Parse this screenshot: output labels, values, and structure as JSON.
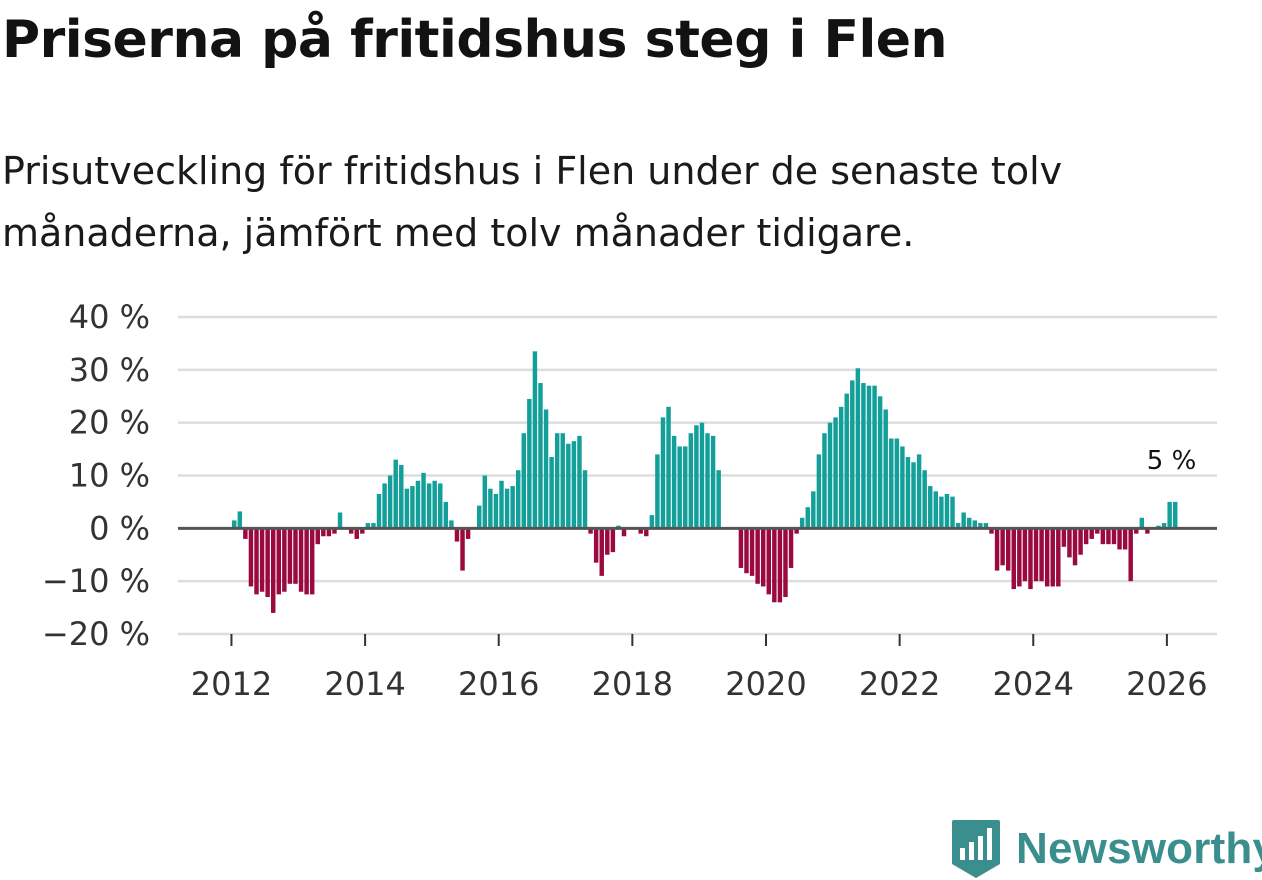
{
  "title": "Priserna på fritidshus steg i Flen",
  "subtitle": "Prisutveckling för fritidshus i Flen under de senaste tolv månaderna, jämfört med tolv månader tidigare.",
  "logo": {
    "text": "Newsworthy",
    "icon": "newsworthy-logo-icon"
  },
  "colors": {
    "positive": "#14a09a",
    "negative": "#9b0a3f",
    "grid": "#dddddd",
    "zero": "#555555",
    "brand": "#3a8f8e"
  },
  "chart_data": {
    "type": "bar",
    "title": "Priserna på fritidshus steg i Flen",
    "xlabel": "",
    "ylabel": "",
    "ylim": [
      -20,
      40
    ],
    "xlim": [
      2011.2,
      2026.75
    ],
    "y_ticks": [
      {
        "value": 40,
        "label": "40 %"
      },
      {
        "value": 30,
        "label": "30 %"
      },
      {
        "value": 20,
        "label": "20 %"
      },
      {
        "value": 10,
        "label": "10 %"
      },
      {
        "value": 0,
        "label": "0 %"
      },
      {
        "value": -10,
        "label": "−10 %"
      },
      {
        "value": -20,
        "label": "−20 %"
      }
    ],
    "x_ticks": [
      {
        "value": 2012,
        "label": "2012"
      },
      {
        "value": 2014,
        "label": "2014"
      },
      {
        "value": 2016,
        "label": "2016"
      },
      {
        "value": 2018,
        "label": "2018"
      },
      {
        "value": 2020,
        "label": "2020"
      },
      {
        "value": 2022,
        "label": "2022"
      },
      {
        "value": 2024,
        "label": "2024"
      },
      {
        "value": 2026,
        "label": "2026"
      }
    ],
    "series_start": "2012-01",
    "values": [
      1.5,
      3.2,
      -2,
      -11,
      -12.5,
      -12,
      -13,
      -16,
      -12.5,
      -12,
      -10.5,
      -10.5,
      -12,
      -12.5,
      -12.5,
      -3,
      -1.5,
      -1.5,
      -1,
      3,
      0,
      -1,
      -2,
      -1,
      1,
      1,
      6.5,
      8.5,
      10,
      13,
      12,
      7.5,
      8,
      9,
      10.5,
      8.5,
      9,
      8.5,
      5,
      1.5,
      -2.5,
      -8,
      -2,
      0,
      4.3,
      10,
      7.5,
      6.5,
      9,
      7.5,
      8,
      11,
      18,
      24.5,
      33.5,
      27.5,
      22.5,
      13.5,
      18,
      18,
      16,
      16.5,
      17.5,
      11,
      -1,
      -6.5,
      -9,
      -5,
      -4.5,
      0.5,
      -1.5,
      0,
      0,
      -1,
      -1.5,
      2.5,
      14,
      21,
      23,
      17.5,
      15.5,
      15.5,
      18,
      19.5,
      20,
      18,
      17.5,
      11,
      0,
      0,
      0,
      -7.5,
      -8.5,
      -9,
      -10.5,
      -11,
      -12.5,
      -14,
      -14,
      -13,
      -7.5,
      -1,
      2,
      4,
      7,
      14,
      18,
      20,
      21,
      23,
      25.5,
      28,
      30.3,
      27.5,
      27,
      27,
      25,
      22.5,
      17,
      17,
      15.5,
      13.5,
      12.5,
      14,
      11,
      8,
      7,
      6,
      6.5,
      6,
      1,
      3,
      2,
      1.5,
      1,
      1,
      -1,
      -8,
      -7,
      -8,
      -11.5,
      -11,
      -10,
      -11.5,
      -10,
      -10,
      -11,
      -11,
      -11,
      -3.5,
      -5.5,
      -7,
      -5,
      -3,
      -2,
      -1,
      -3,
      -3,
      -3,
      -4,
      -4,
      -10,
      -1,
      2,
      -1,
      0,
      0.5,
      1,
      5,
      5
    ],
    "annotations": [
      {
        "label": "5 %",
        "x": 2025.95,
        "y": 5
      }
    ]
  }
}
